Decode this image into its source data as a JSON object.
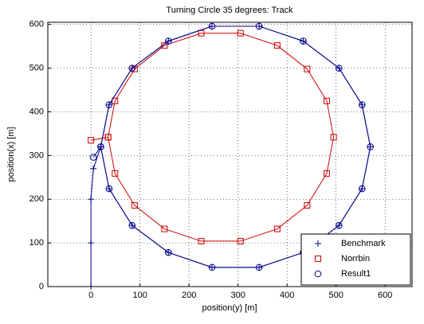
{
  "chart_data": {
    "type": "line",
    "title": "Turning Circle 35 degrees: Track",
    "x_label": "position(y) [m]",
    "y_label": "position(x) [m]",
    "xlim": [
      -88,
      655
    ],
    "ylim": [
      0,
      605
    ],
    "xticks": [
      0,
      100,
      200,
      300,
      400,
      500,
      600
    ],
    "yticks": [
      0,
      100,
      200,
      300,
      400,
      500,
      600
    ],
    "grid": true,
    "legend": "lower right",
    "series": [
      {
        "name": "Benchmark",
        "color": "#00008b",
        "marker": "plus",
        "x": [
          0,
          0,
          0,
          5,
          20,
          37,
          84,
          158,
          247,
          343,
          433,
          506,
          553,
          570,
          553,
          506,
          433,
          343,
          247,
          158,
          84,
          37,
          20
        ],
        "values": [
          0,
          100,
          200,
          270,
          320,
          416,
          500,
          562,
          596,
          596,
          562,
          500,
          416,
          320,
          224,
          140,
          78,
          44,
          44,
          78,
          140,
          224,
          320
        ]
      },
      {
        "name": "Norrbin",
        "color": "#cc0000",
        "marker": "square",
        "x": [
          0,
          35,
          49,
          89,
          150,
          225,
          305,
          380,
          441,
          481,
          495,
          481,
          441,
          380,
          305,
          225,
          150,
          89,
          49,
          35
        ],
        "values": [
          335,
          342,
          425,
          498,
          552,
          580,
          580,
          552,
          498,
          425,
          342,
          259,
          186,
          132,
          104,
          104,
          132,
          186,
          259,
          342
        ]
      },
      {
        "name": "Result1",
        "color": "#00008b",
        "marker": "circle",
        "x": [
          5,
          20,
          37,
          84,
          158,
          247,
          343,
          433,
          506,
          553,
          570,
          553,
          506,
          433,
          343,
          247,
          158,
          84,
          37,
          20
        ],
        "values": [
          296,
          320,
          416,
          500,
          562,
          596,
          596,
          562,
          500,
          416,
          320,
          224,
          140,
          78,
          44,
          44,
          78,
          140,
          224,
          320
        ]
      }
    ]
  }
}
